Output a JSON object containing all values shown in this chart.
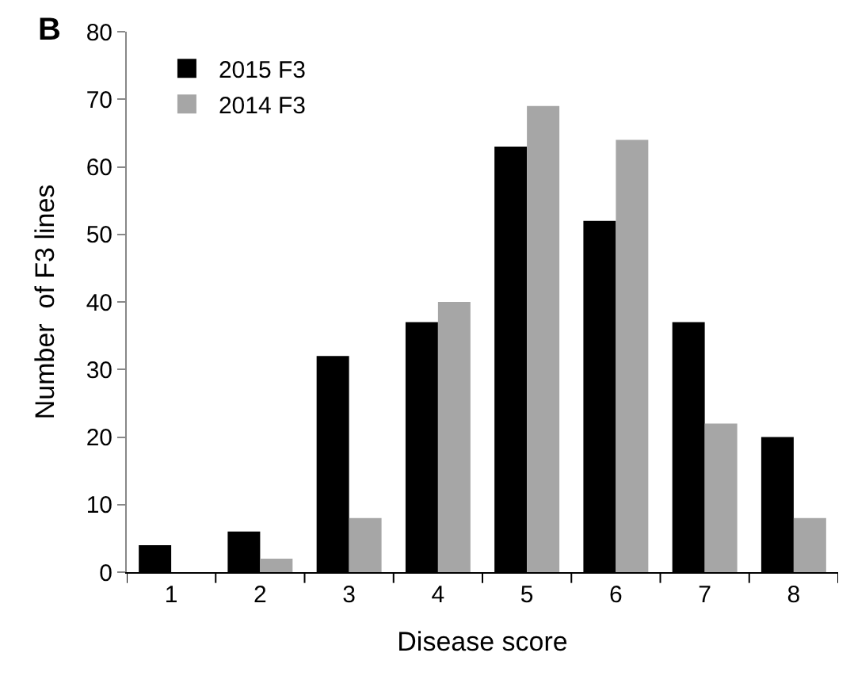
{
  "chart_data": {
    "type": "bar",
    "xlabel": "Disease score",
    "ylabel": "Number  of F3 lines",
    "annotations": [
      "B"
    ],
    "categories": [
      "1",
      "2",
      "3",
      "4",
      "5",
      "6",
      "7",
      "8"
    ],
    "series": [
      {
        "name": "2015 F3",
        "color": "#000000",
        "values": [
          4,
          6,
          32,
          37,
          63,
          52,
          37,
          20
        ]
      },
      {
        "name": "2014 F3",
        "color": "#a6a6a6",
        "values": [
          0,
          2,
          8,
          40,
          69,
          64,
          22,
          8
        ]
      }
    ],
    "ylim": [
      0,
      80
    ],
    "yticks": [
      0,
      10,
      20,
      30,
      40,
      50,
      60,
      70,
      80
    ],
    "legend": "top left"
  }
}
